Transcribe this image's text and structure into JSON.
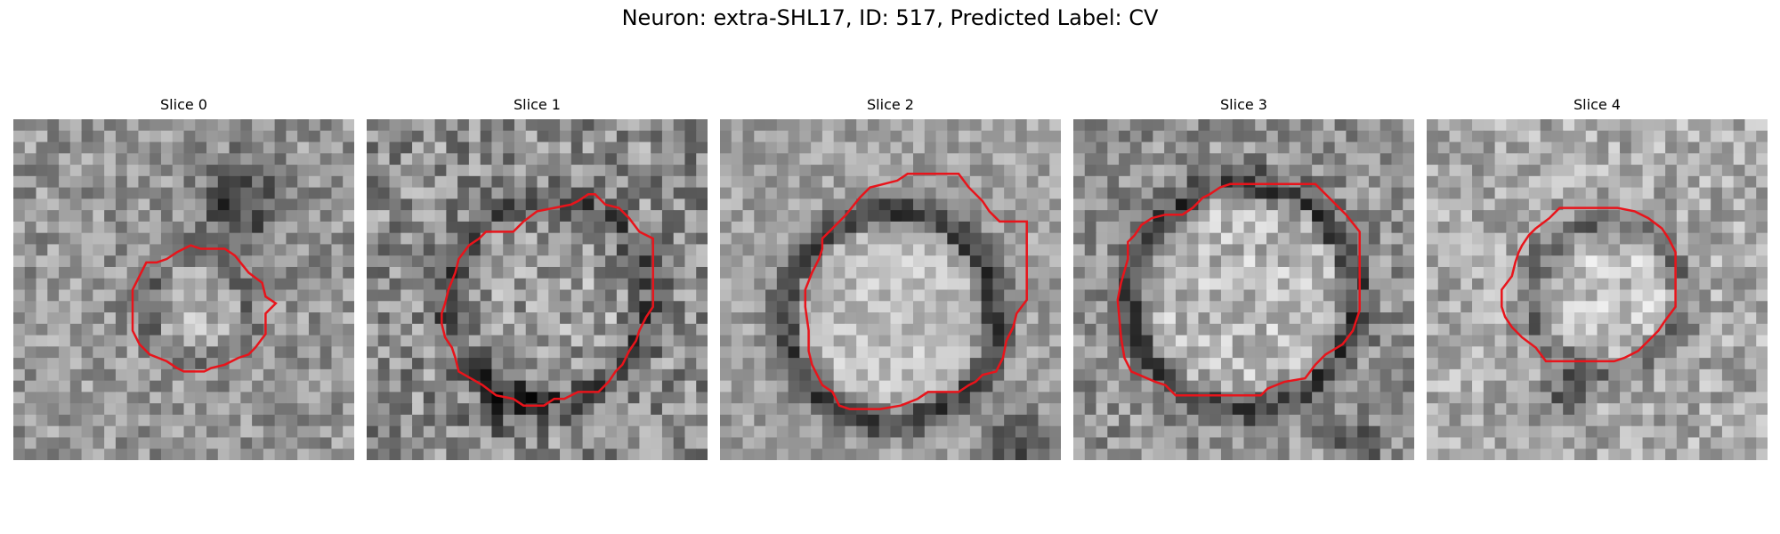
{
  "figure": {
    "title": "Neuron: extra-SHL17, ID: 517, Predicted Label: CV"
  },
  "slices": [
    {
      "title": "Slice 0",
      "seed": 11,
      "base": 150,
      "noise": 95,
      "ring_center": [
        0.54,
        0.55
      ],
      "ring_radius": 0.15,
      "ring_dark": 35,
      "inner_bright": 25,
      "dark_blob": [
        0.67,
        0.24,
        0.12,
        95
      ],
      "contour": [
        [
          0.42,
          0.42
        ],
        [
          0.45,
          0.41
        ],
        [
          0.48,
          0.39
        ],
        [
          0.5,
          0.38
        ],
        [
          0.52,
          0.37
        ],
        [
          0.55,
          0.38
        ],
        [
          0.58,
          0.38
        ],
        [
          0.62,
          0.38
        ],
        [
          0.65,
          0.4
        ],
        [
          0.69,
          0.45
        ],
        [
          0.73,
          0.48
        ],
        [
          0.74,
          0.52
        ],
        [
          0.77,
          0.54
        ],
        [
          0.74,
          0.57
        ],
        [
          0.74,
          0.63
        ],
        [
          0.71,
          0.67
        ],
        [
          0.69,
          0.69
        ],
        [
          0.66,
          0.7
        ],
        [
          0.62,
          0.72
        ],
        [
          0.58,
          0.73
        ],
        [
          0.56,
          0.74
        ],
        [
          0.5,
          0.74
        ],
        [
          0.48,
          0.73
        ],
        [
          0.45,
          0.71
        ],
        [
          0.4,
          0.69
        ],
        [
          0.37,
          0.66
        ],
        [
          0.35,
          0.62
        ],
        [
          0.35,
          0.58
        ],
        [
          0.35,
          0.5
        ],
        [
          0.37,
          0.46
        ],
        [
          0.39,
          0.42
        ]
      ],
      "contour_color": "#e8141b"
    },
    {
      "title": "Slice 1",
      "seed": 23,
      "base": 140,
      "noise": 120,
      "ring_center": [
        0.53,
        0.53
      ],
      "ring_radius": 0.29,
      "ring_dark": 55,
      "inner_bright": 15,
      "dark_blob": [
        0.42,
        0.82,
        0.1,
        60
      ],
      "contour": [
        [
          0.43,
          0.33
        ],
        [
          0.46,
          0.3
        ],
        [
          0.5,
          0.27
        ],
        [
          0.55,
          0.26
        ],
        [
          0.6,
          0.25
        ],
        [
          0.62,
          0.24
        ],
        [
          0.65,
          0.22
        ],
        [
          0.67,
          0.22
        ],
        [
          0.7,
          0.25
        ],
        [
          0.74,
          0.26
        ],
        [
          0.77,
          0.29
        ],
        [
          0.8,
          0.33
        ],
        [
          0.84,
          0.35
        ],
        [
          0.84,
          0.4
        ],
        [
          0.84,
          0.52
        ],
        [
          0.84,
          0.55
        ],
        [
          0.82,
          0.58
        ],
        [
          0.8,
          0.62
        ],
        [
          0.79,
          0.65
        ],
        [
          0.77,
          0.68
        ],
        [
          0.75,
          0.72
        ],
        [
          0.73,
          0.74
        ],
        [
          0.71,
          0.77
        ],
        [
          0.68,
          0.8
        ],
        [
          0.65,
          0.8
        ],
        [
          0.62,
          0.8
        ],
        [
          0.58,
          0.82
        ],
        [
          0.55,
          0.82
        ],
        [
          0.52,
          0.84
        ],
        [
          0.46,
          0.84
        ],
        [
          0.43,
          0.82
        ],
        [
          0.38,
          0.81
        ],
        [
          0.34,
          0.78
        ],
        [
          0.27,
          0.74
        ],
        [
          0.26,
          0.7
        ],
        [
          0.25,
          0.67
        ],
        [
          0.23,
          0.64
        ],
        [
          0.22,
          0.6
        ],
        [
          0.22,
          0.57
        ],
        [
          0.23,
          0.54
        ],
        [
          0.24,
          0.5
        ],
        [
          0.26,
          0.45
        ],
        [
          0.27,
          0.41
        ],
        [
          0.3,
          0.37
        ],
        [
          0.33,
          0.35
        ],
        [
          0.35,
          0.33
        ]
      ],
      "contour_color": "#e8141b"
    },
    {
      "title": "Slice 2",
      "seed": 37,
      "base": 160,
      "noise": 75,
      "ring_center": [
        0.5,
        0.58
      ],
      "ring_radius": 0.31,
      "ring_dark": 95,
      "inner_bright": 30,
      "dark_blob": [
        0.87,
        0.95,
        0.1,
        85
      ],
      "contour": [
        [
          0.3,
          0.35
        ],
        [
          0.33,
          0.32
        ],
        [
          0.37,
          0.28
        ],
        [
          0.41,
          0.23
        ],
        [
          0.44,
          0.2
        ],
        [
          0.48,
          0.19
        ],
        [
          0.52,
          0.18
        ],
        [
          0.55,
          0.16
        ],
        [
          0.6,
          0.16
        ],
        [
          0.65,
          0.16
        ],
        [
          0.7,
          0.16
        ],
        [
          0.73,
          0.2
        ],
        [
          0.77,
          0.24
        ],
        [
          0.79,
          0.27
        ],
        [
          0.82,
          0.3
        ],
        [
          0.9,
          0.3
        ],
        [
          0.9,
          0.4
        ],
        [
          0.9,
          0.53
        ],
        [
          0.87,
          0.57
        ],
        [
          0.86,
          0.61
        ],
        [
          0.84,
          0.65
        ],
        [
          0.83,
          0.7
        ],
        [
          0.81,
          0.74
        ],
        [
          0.77,
          0.75
        ],
        [
          0.75,
          0.77
        ],
        [
          0.73,
          0.78
        ],
        [
          0.7,
          0.8
        ],
        [
          0.65,
          0.8
        ],
        [
          0.61,
          0.8
        ],
        [
          0.58,
          0.82
        ],
        [
          0.53,
          0.84
        ],
        [
          0.47,
          0.85
        ],
        [
          0.38,
          0.85
        ],
        [
          0.35,
          0.84
        ],
        [
          0.33,
          0.8
        ],
        [
          0.3,
          0.78
        ],
        [
          0.27,
          0.72
        ],
        [
          0.26,
          0.68
        ],
        [
          0.26,
          0.62
        ],
        [
          0.25,
          0.55
        ],
        [
          0.25,
          0.5
        ],
        [
          0.27,
          0.45
        ],
        [
          0.29,
          0.41
        ],
        [
          0.3,
          0.38
        ]
      ],
      "contour_color": "#e8141b"
    },
    {
      "title": "Slice 3",
      "seed": 53,
      "base": 145,
      "noise": 100,
      "ring_center": [
        0.5,
        0.52
      ],
      "ring_radius": 0.33,
      "ring_dark": 75,
      "inner_bright": 40,
      "dark_blob": [
        0.83,
        0.95,
        0.06,
        70
      ],
      "contour": [
        [
          0.32,
          0.28
        ],
        [
          0.35,
          0.26
        ],
        [
          0.38,
          0.23
        ],
        [
          0.4,
          0.22
        ],
        [
          0.43,
          0.2
        ],
        [
          0.46,
          0.19
        ],
        [
          0.52,
          0.19
        ],
        [
          0.58,
          0.19
        ],
        [
          0.65,
          0.19
        ],
        [
          0.71,
          0.19
        ],
        [
          0.75,
          0.23
        ],
        [
          0.8,
          0.28
        ],
        [
          0.84,
          0.33
        ],
        [
          0.84,
          0.42
        ],
        [
          0.84,
          0.56
        ],
        [
          0.82,
          0.62
        ],
        [
          0.79,
          0.66
        ],
        [
          0.74,
          0.69
        ],
        [
          0.71,
          0.72
        ],
        [
          0.68,
          0.76
        ],
        [
          0.62,
          0.77
        ],
        [
          0.57,
          0.79
        ],
        [
          0.55,
          0.81
        ],
        [
          0.46,
          0.81
        ],
        [
          0.3,
          0.81
        ],
        [
          0.27,
          0.78
        ],
        [
          0.24,
          0.77
        ],
        [
          0.17,
          0.74
        ],
        [
          0.15,
          0.7
        ],
        [
          0.14,
          0.64
        ],
        [
          0.13,
          0.53
        ],
        [
          0.14,
          0.48
        ],
        [
          0.16,
          0.41
        ],
        [
          0.16,
          0.36
        ],
        [
          0.18,
          0.34
        ],
        [
          0.2,
          0.31
        ],
        [
          0.23,
          0.29
        ],
        [
          0.27,
          0.28
        ]
      ],
      "contour_color": "#e8141b"
    },
    {
      "title": "Slice 4",
      "seed": 71,
      "base": 170,
      "noise": 95,
      "ring_center": [
        0.53,
        0.52
      ],
      "ring_radius": 0.22,
      "ring_dark": 55,
      "inner_bright": 25,
      "dark_blob": [
        0.41,
        0.81,
        0.07,
        80
      ],
      "contour": [
        [
          0.32,
          0.32
        ],
        [
          0.36,
          0.29
        ],
        [
          0.39,
          0.26
        ],
        [
          0.41,
          0.26
        ],
        [
          0.48,
          0.26
        ],
        [
          0.56,
          0.26
        ],
        [
          0.61,
          0.27
        ],
        [
          0.65,
          0.29
        ],
        [
          0.69,
          0.32
        ],
        [
          0.71,
          0.35
        ],
        [
          0.73,
          0.39
        ],
        [
          0.73,
          0.45
        ],
        [
          0.73,
          0.55
        ],
        [
          0.7,
          0.59
        ],
        [
          0.68,
          0.62
        ],
        [
          0.65,
          0.65
        ],
        [
          0.62,
          0.68
        ],
        [
          0.6,
          0.69
        ],
        [
          0.58,
          0.7
        ],
        [
          0.55,
          0.71
        ],
        [
          0.45,
          0.71
        ],
        [
          0.35,
          0.71
        ],
        [
          0.32,
          0.67
        ],
        [
          0.28,
          0.64
        ],
        [
          0.25,
          0.61
        ],
        [
          0.23,
          0.58
        ],
        [
          0.22,
          0.55
        ],
        [
          0.22,
          0.5
        ],
        [
          0.25,
          0.46
        ],
        [
          0.26,
          0.42
        ],
        [
          0.27,
          0.39
        ],
        [
          0.28,
          0.37
        ],
        [
          0.3,
          0.34
        ]
      ],
      "contour_color": "#e8141b"
    }
  ]
}
